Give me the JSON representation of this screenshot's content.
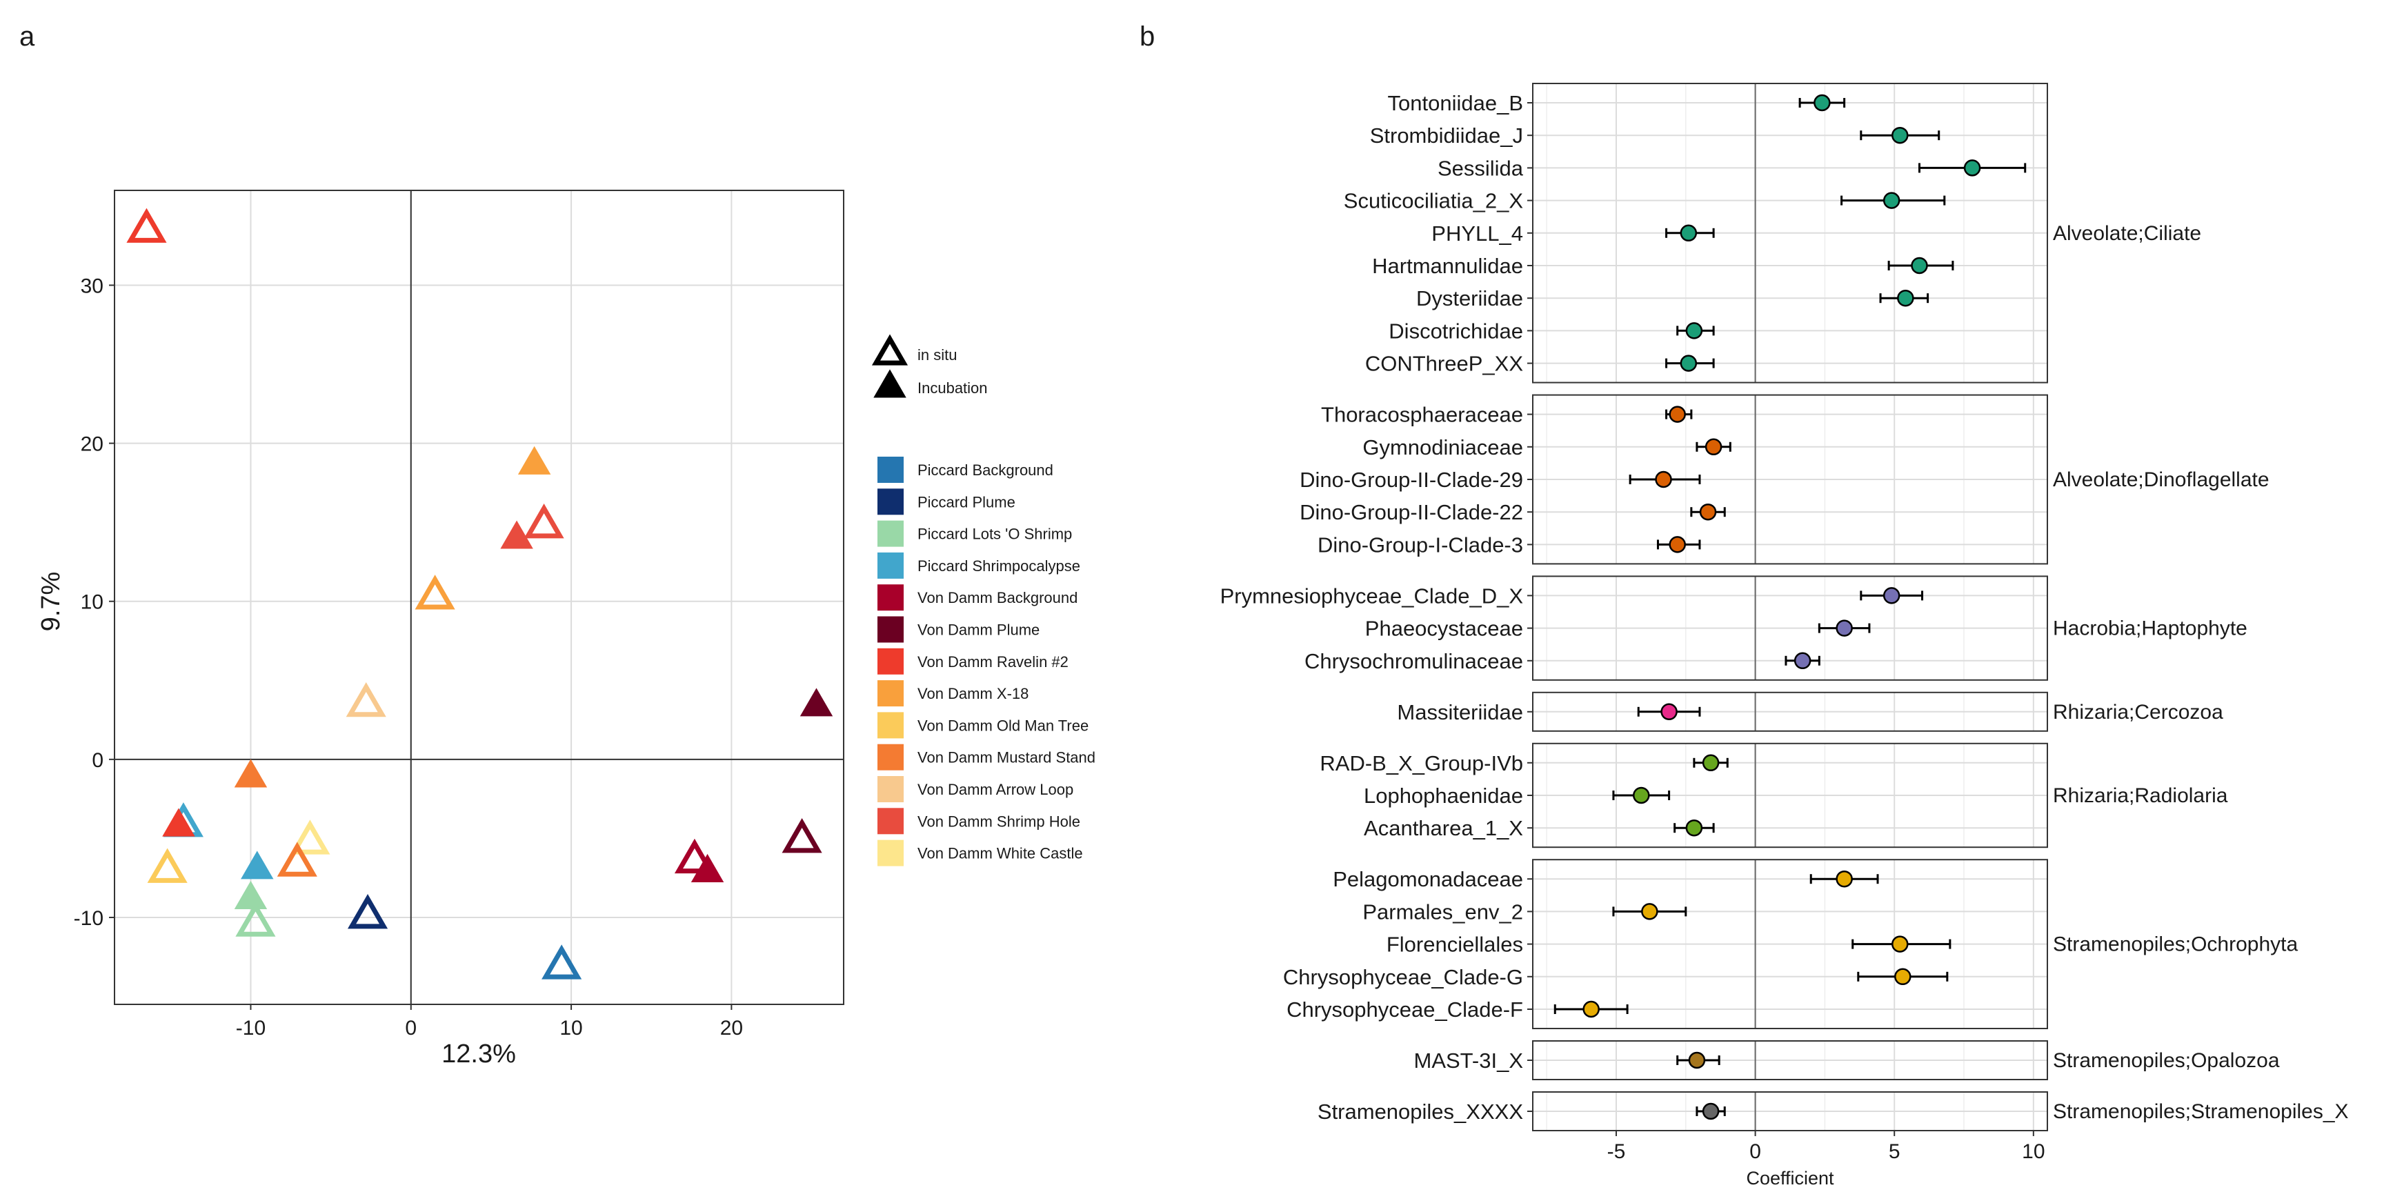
{
  "panel_a": {
    "label": "a",
    "shape_legend": [
      {
        "label": "in situ",
        "filled": false
      },
      {
        "label": "Incubation",
        "filled": true
      }
    ],
    "colors": [
      {
        "name": "Piccard Background",
        "color": "#2576b0"
      },
      {
        "name": "Piccard Plume",
        "color": "#0f2e6e"
      },
      {
        "name": "Piccard Lots 'O Shrimp",
        "color": "#99d8a7"
      },
      {
        "name": "Piccard Shrimpocalypse",
        "color": "#41a6cc"
      },
      {
        "name": "Von Damm Background",
        "color": "#a8002a"
      },
      {
        "name": "Von Damm Plume",
        "color": "#6b0022"
      },
      {
        "name": "Von Damm Ravelin #2",
        "color": "#ee3b2c"
      },
      {
        "name": "Von Damm X-18",
        "color": "#f9a03c"
      },
      {
        "name": "Von Damm Old Man Tree",
        "color": "#fbcb5a"
      },
      {
        "name": "Von Damm Mustard Stand",
        "color": "#f47b32"
      },
      {
        "name": "Von Damm Arrow Loop",
        "color": "#f8c98e"
      },
      {
        "name": "Von Damm Shrimp Hole",
        "color": "#e84c3e"
      },
      {
        "name": "Von Damm White Castle",
        "color": "#fde68c"
      }
    ]
  },
  "panel_b": {
    "label": "b"
  },
  "chart_data": [
    {
      "type": "scatter",
      "title": "",
      "xlabel": "12.3%",
      "ylabel": "9.7%",
      "xlim": [
        -18.5,
        27
      ],
      "ylim": [
        -15.5,
        36
      ],
      "xticks": [
        -10,
        0,
        10,
        20
      ],
      "yticks": [
        -10,
        0,
        10,
        20,
        30
      ],
      "grid": true,
      "zero_lines": true,
      "legend_position": "right",
      "points": [
        {
          "site": "Von Damm Ravelin #2",
          "type": "in situ",
          "x": -16.5,
          "y": 33.5
        },
        {
          "site": "Von Damm X-18",
          "type": "Incubation",
          "x": 7.7,
          "y": 18.7
        },
        {
          "site": "Von Damm Shrimp Hole",
          "type": "in situ",
          "x": 8.3,
          "y": 14.8
        },
        {
          "site": "Von Damm Shrimp Hole",
          "type": "Incubation",
          "x": 6.6,
          "y": 14.0
        },
        {
          "site": "Von Damm X-18",
          "type": "in situ",
          "x": 1.5,
          "y": 10.3
        },
        {
          "site": "Von Damm Arrow Loop",
          "type": "in situ",
          "x": -2.8,
          "y": 3.5
        },
        {
          "site": "Von Damm Plume",
          "type": "Incubation",
          "x": 25.3,
          "y": 3.4
        },
        {
          "site": "Von Damm Mustard Stand",
          "type": "Incubation",
          "x": -10.0,
          "y": -1.1
        },
        {
          "site": "Piccard Shrimpocalypse",
          "type": "in situ",
          "x": -14.2,
          "y": -4.1
        },
        {
          "site": "Von Damm Ravelin #2",
          "type": "Incubation",
          "x": -14.5,
          "y": -4.2
        },
        {
          "site": "Von Damm Old Man Tree",
          "type": "in situ",
          "x": -15.2,
          "y": -7.0
        },
        {
          "site": "Von Damm White Castle",
          "type": "in situ",
          "x": -6.3,
          "y": -5.2
        },
        {
          "site": "Von Damm Mustard Stand",
          "type": "in situ",
          "x": -7.1,
          "y": -6.6
        },
        {
          "site": "Piccard Shrimpocalypse",
          "type": "Incubation",
          "x": -9.6,
          "y": -6.9
        },
        {
          "site": "Piccard Lots 'O Shrimp",
          "type": "Incubation",
          "x": -10.0,
          "y": -8.8
        },
        {
          "site": "Piccard Lots 'O Shrimp",
          "type": "in situ",
          "x": -9.7,
          "y": -10.4
        },
        {
          "site": "Piccard Plume",
          "type": "in situ",
          "x": -2.7,
          "y": -9.9
        },
        {
          "site": "Piccard Background",
          "type": "in situ",
          "x": 9.4,
          "y": -13.1
        },
        {
          "site": "Von Damm Background",
          "type": "in situ",
          "x": 17.7,
          "y": -6.4
        },
        {
          "site": "Von Damm Background",
          "type": "Incubation",
          "x": 18.5,
          "y": -7.1
        },
        {
          "site": "Von Damm Plume",
          "type": "in situ",
          "x": 24.4,
          "y": -5.1
        }
      ]
    },
    {
      "type": "forest",
      "xlabel": "Coefficient",
      "xlim": [
        -8,
        10.5
      ],
      "xticks": [
        -5,
        0,
        5,
        10
      ],
      "grid": true,
      "groups": [
        {
          "name": "Alveolate;Ciliate",
          "color": "#1b9e77",
          "taxa": [
            {
              "label": "Tontoniidae_B",
              "coef": 2.4,
              "lo": 1.6,
              "hi": 3.2
            },
            {
              "label": "Strombidiidae_J",
              "coef": 5.2,
              "lo": 3.8,
              "hi": 6.6
            },
            {
              "label": "Sessilida",
              "coef": 7.8,
              "lo": 5.9,
              "hi": 9.7
            },
            {
              "label": "Scuticociliatia_2_X",
              "coef": 4.9,
              "lo": 3.1,
              "hi": 6.8
            },
            {
              "label": "PHYLL_4",
              "coef": -2.4,
              "lo": -3.2,
              "hi": -1.5
            },
            {
              "label": "Hartmannulidae",
              "coef": 5.9,
              "lo": 4.8,
              "hi": 7.1
            },
            {
              "label": "Dysteriidae",
              "coef": 5.4,
              "lo": 4.5,
              "hi": 6.2
            },
            {
              "label": "Discotrichidae",
              "coef": -2.2,
              "lo": -2.8,
              "hi": -1.5
            },
            {
              "label": "CONThreeP_XX",
              "coef": -2.4,
              "lo": -3.2,
              "hi": -1.5
            }
          ]
        },
        {
          "name": "Alveolate;Dinoflagellate",
          "color": "#d95f02",
          "taxa": [
            {
              "label": "Thoracosphaeraceae",
              "coef": -2.8,
              "lo": -3.2,
              "hi": -2.3
            },
            {
              "label": "Gymnodiniaceae",
              "coef": -1.5,
              "lo": -2.1,
              "hi": -0.9
            },
            {
              "label": "Dino-Group-II-Clade-29",
              "coef": -3.3,
              "lo": -4.5,
              "hi": -2.0
            },
            {
              "label": "Dino-Group-II-Clade-22",
              "coef": -1.7,
              "lo": -2.3,
              "hi": -1.1
            },
            {
              "label": "Dino-Group-I-Clade-3",
              "coef": -2.8,
              "lo": -3.5,
              "hi": -2.0
            }
          ]
        },
        {
          "name": "Hacrobia;Haptophyte",
          "color": "#7570b3",
          "taxa": [
            {
              "label": "Prymnesiophyceae_Clade_D_X",
              "coef": 4.9,
              "lo": 3.8,
              "hi": 6.0
            },
            {
              "label": "Phaeocystaceae",
              "coef": 3.2,
              "lo": 2.3,
              "hi": 4.1
            },
            {
              "label": "Chrysochromulinaceae",
              "coef": 1.7,
              "lo": 1.1,
              "hi": 2.3
            }
          ]
        },
        {
          "name": "Rhizaria;Cercozoa",
          "color": "#e7298a",
          "taxa": [
            {
              "label": "Massiteriidae",
              "coef": -3.1,
              "lo": -4.2,
              "hi": -2.0
            }
          ]
        },
        {
          "name": "Rhizaria;Radiolaria",
          "color": "#66a61e",
          "taxa": [
            {
              "label": "RAD-B_X_Group-IVb",
              "coef": -1.6,
              "lo": -2.2,
              "hi": -1.0
            },
            {
              "label": "Lophophaenidae",
              "coef": -4.1,
              "lo": -5.1,
              "hi": -3.1
            },
            {
              "label": "Acantharea_1_X",
              "coef": -2.2,
              "lo": -2.9,
              "hi": -1.5
            }
          ]
        },
        {
          "name": "Stramenopiles;Ochrophyta",
          "color": "#e6ab02",
          "taxa": [
            {
              "label": "Pelagomonadaceae",
              "coef": 3.2,
              "lo": 2.0,
              "hi": 4.4
            },
            {
              "label": "Parmales_env_2",
              "coef": -3.8,
              "lo": -5.1,
              "hi": -2.5
            },
            {
              "label": "Florenciellales",
              "coef": 5.2,
              "lo": 3.5,
              "hi": 7.0
            },
            {
              "label": "Chrysophyceae_Clade-G",
              "coef": 5.3,
              "lo": 3.7,
              "hi": 6.9
            },
            {
              "label": "Chrysophyceae_Clade-F",
              "coef": -5.9,
              "lo": -7.2,
              "hi": -4.6
            }
          ]
        },
        {
          "name": "Stramenopiles;Opalozoa",
          "color": "#a6761d",
          "taxa": [
            {
              "label": "MAST-3I_X",
              "coef": -2.1,
              "lo": -2.8,
              "hi": -1.3
            }
          ]
        },
        {
          "name": "Stramenopiles;Stramenopiles_X",
          "color": "#666666",
          "taxa": [
            {
              "label": "Stramenopiles_XXXX",
              "coef": -1.6,
              "lo": -2.1,
              "hi": -1.1
            }
          ]
        }
      ]
    }
  ]
}
